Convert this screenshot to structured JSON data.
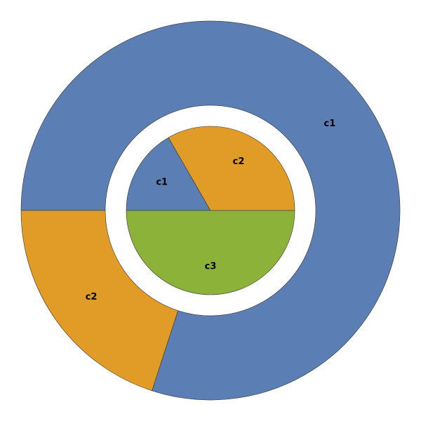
{
  "chart_data": [
    {
      "type": "donut",
      "categories": [
        "c1",
        "c2"
      ],
      "values": [
        80,
        20
      ],
      "colors": [
        "#5b7fb4",
        "#e09c26"
      ]
    },
    {
      "type": "pie",
      "categories": [
        "c1",
        "c2",
        "c3"
      ],
      "values": [
        1,
        2,
        3
      ],
      "colors": [
        "#5b7fb4",
        "#e09c26",
        "#8db23a"
      ]
    }
  ]
}
